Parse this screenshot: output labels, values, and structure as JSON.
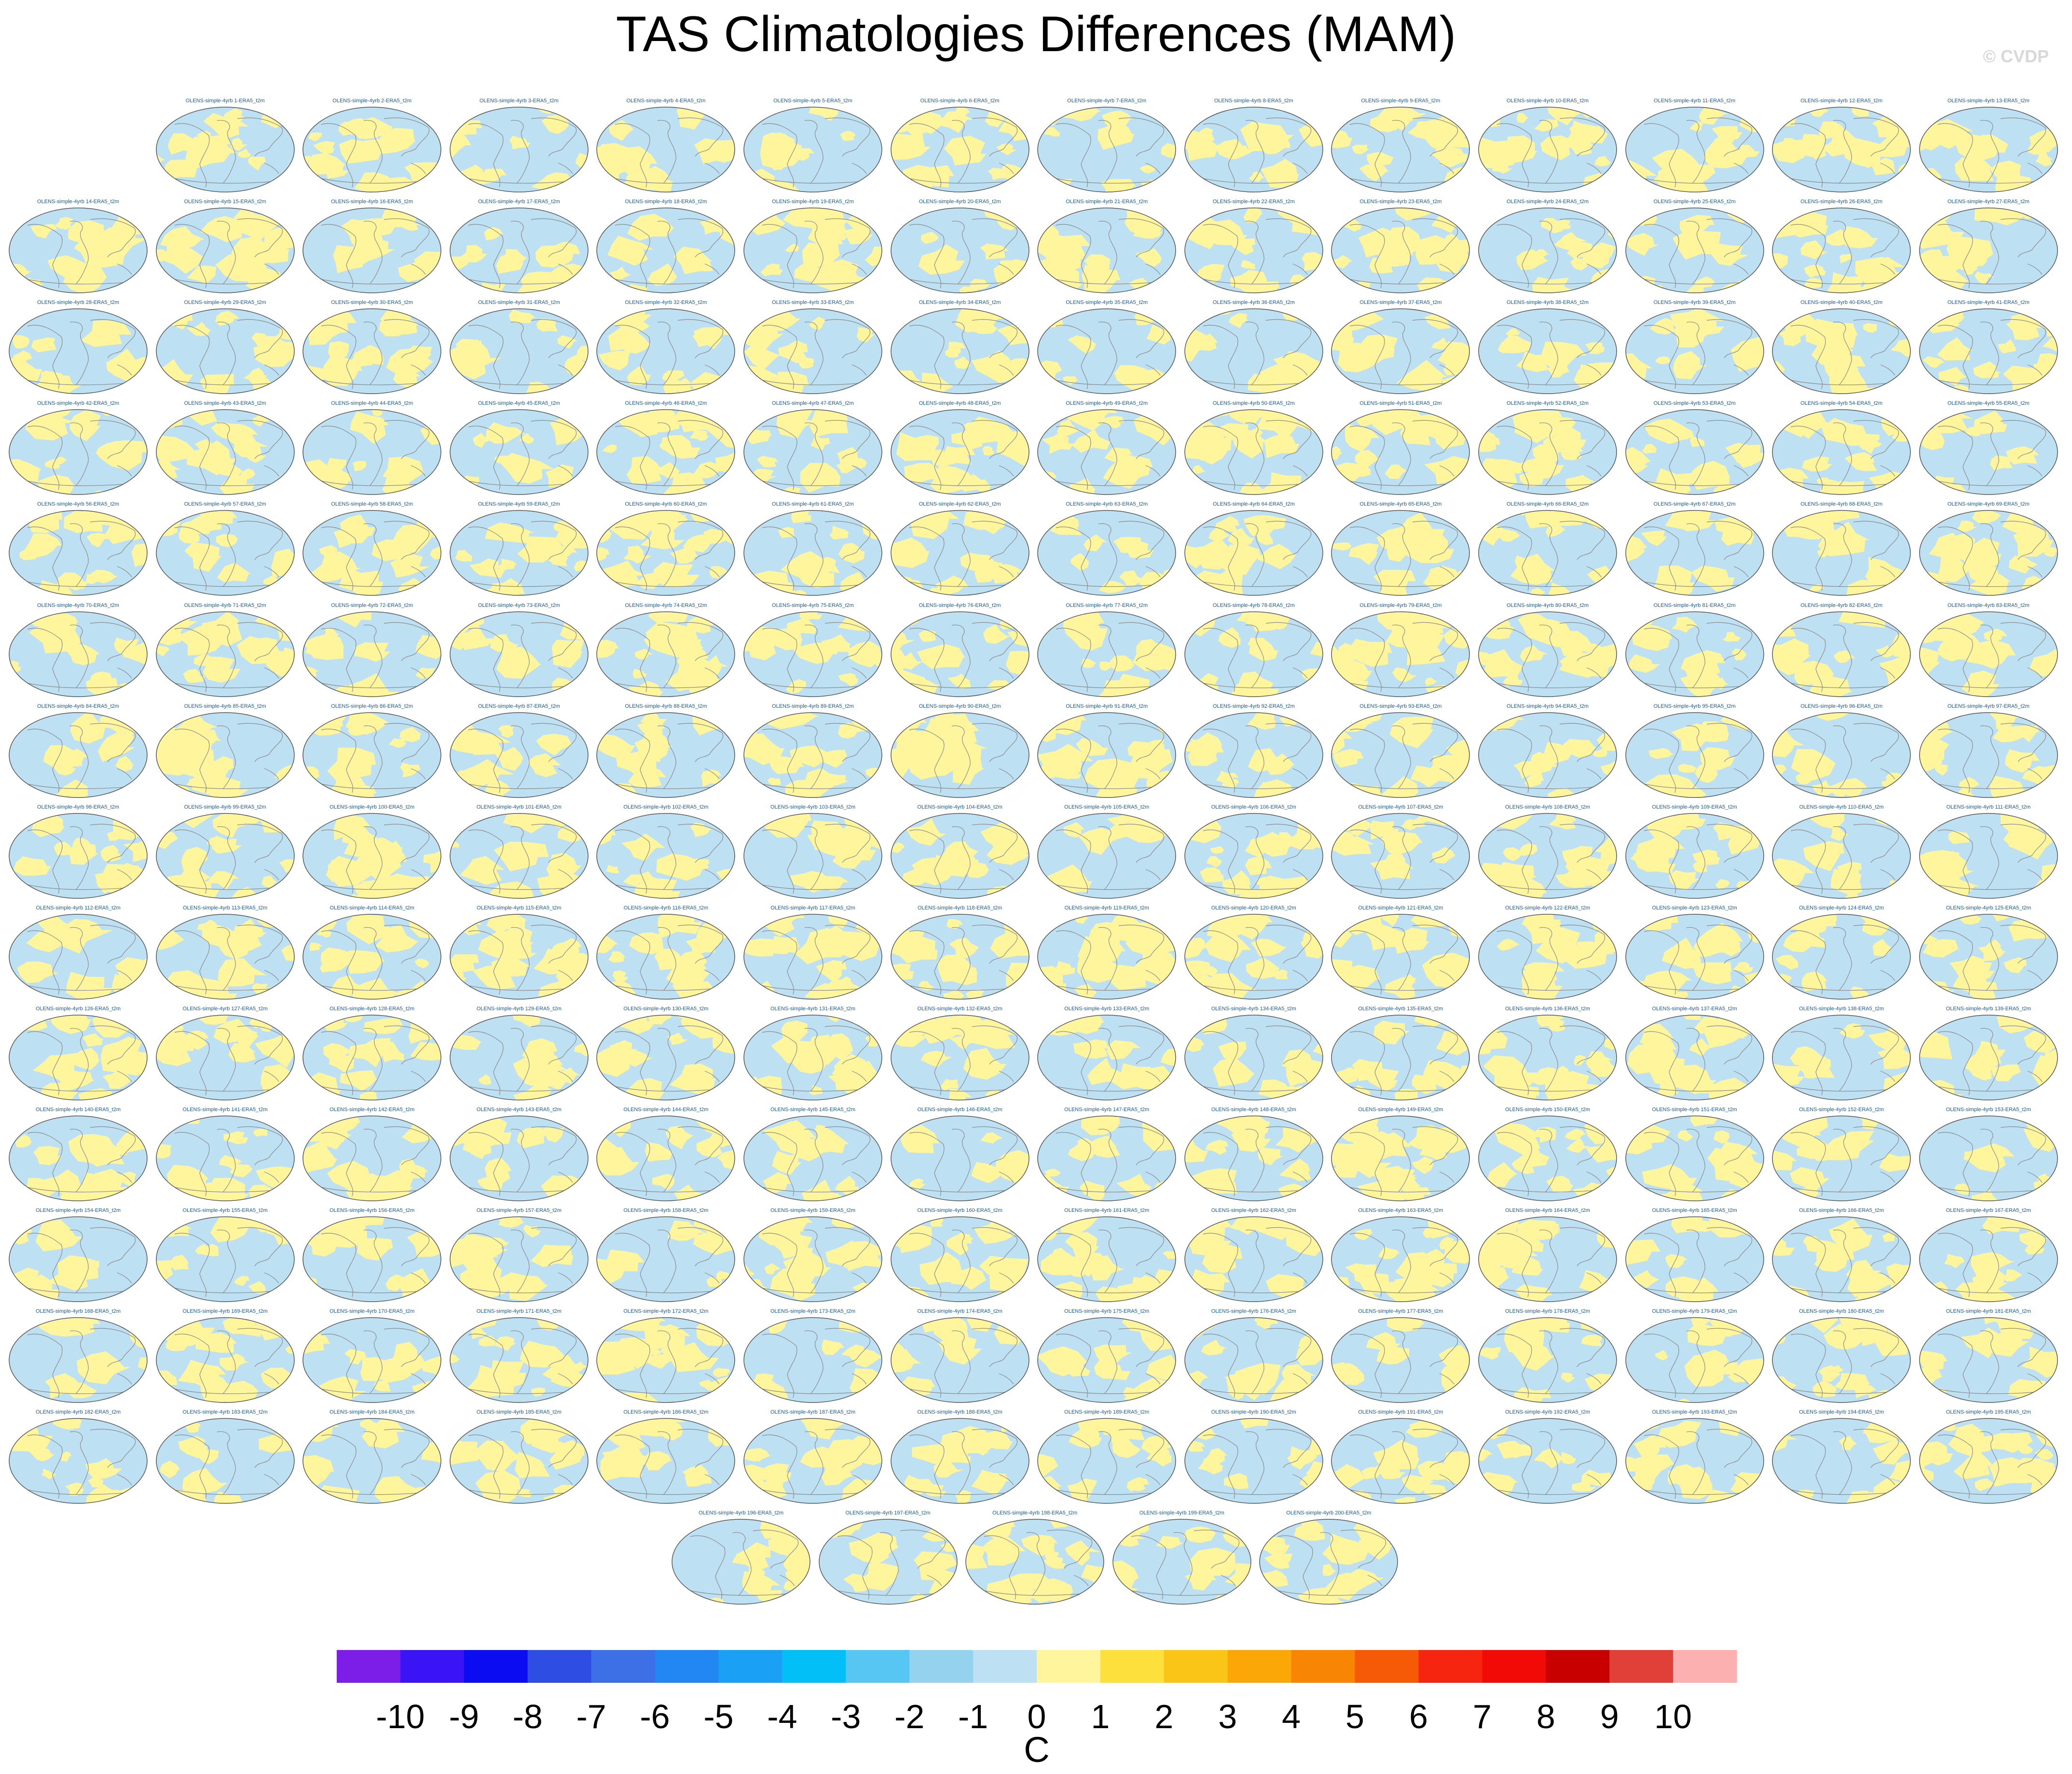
{
  "figure": {
    "title": "TAS Climatologies Differences (MAM)",
    "copyright": "© CVDP"
  },
  "chart_data": {
    "type": "heatmap",
    "title": "TAS Climatologies Differences (MAM)",
    "panel_label_template": "OLENS-simple-4yrb {n}-ERA5_t2m",
    "panel_count": 200,
    "panel_layout_rows": [
      13,
      14,
      14,
      14,
      14,
      14,
      14,
      14,
      14,
      14,
      14,
      14,
      14,
      14,
      5
    ],
    "dominant_colors": {
      "negative": "#bde0f2",
      "positive": "#fff59d"
    },
    "colorbar": {
      "unit_label": "C",
      "ticks": [
        "-10",
        "-9",
        "-8",
        "-7",
        "-6",
        "-5",
        "-4",
        "-3",
        "-2",
        "-1",
        "0",
        "1",
        "2",
        "3",
        "4",
        "5",
        "6",
        "7",
        "8",
        "9",
        "10"
      ],
      "colors": [
        "#7c1de8",
        "#3a14f5",
        "#0b0cf2",
        "#2e4ee3",
        "#3d6fe6",
        "#2287f2",
        "#1aa0f5",
        "#03bff7",
        "#58c6f2",
        "#94d2ee",
        "#bde0f2",
        "#fff59d",
        "#fde03c",
        "#fbc518",
        "#fba707",
        "#f98505",
        "#f65a06",
        "#f52510",
        "#f20a06",
        "#c90000",
        "#e04038",
        "#fdb0b0"
      ]
    }
  }
}
